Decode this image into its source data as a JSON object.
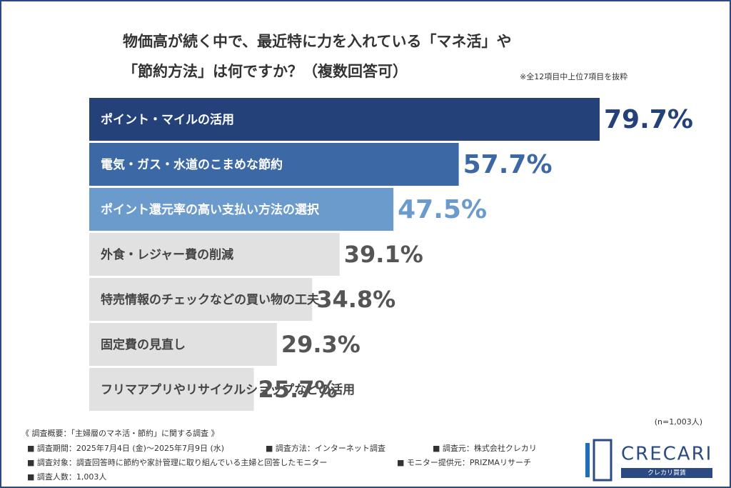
{
  "chart_data": {
    "type": "bar",
    "orientation": "horizontal",
    "title": [
      "物価高が続く中で、最近特に力を入れている「マネ活」や",
      "「節約方法」は何ですか？（複数回答可）"
    ],
    "note": "※全12項目中上位7項目を抜粋",
    "categories": [
      "ポイント・マイルの活用",
      "電気・ガス・水道のこまめな節約",
      "ポイント還元率の高い支払い方法の選択",
      "外食・レジャー費の削減",
      "特売情報のチェックなどの買い物の工夫",
      "固定費の見直し",
      "フリマアプリやリサイクルショップなどの活用"
    ],
    "values": [
      79.7,
      57.7,
      47.5,
      39.1,
      34.8,
      29.3,
      25.7
    ],
    "value_labels": [
      "79.7%",
      "57.7%",
      "47.5%",
      "39.1%",
      "34.8%",
      "29.3%",
      "25.7%"
    ],
    "colors": [
      "#24417a",
      "#3c69a6",
      "#6b9acd",
      "#e1e1e1",
      "#e1e1e1",
      "#e1e1e1",
      "#e1e1e1"
    ],
    "category_label_colors": [
      "#ffffff",
      "#ffffff",
      "#ffffff",
      "#444444",
      "#444444",
      "#444444",
      "#444444"
    ],
    "value_label_colors": [
      "#24417a",
      "#3c69a6",
      "#6b9acd",
      "#555555",
      "#555555",
      "#555555",
      "#555555"
    ],
    "sample_size": "(n=1,003人)"
  },
  "footer": {
    "heading": "《 調査概要：「主婦層のマネ活・節約」に関する調査 》",
    "items": [
      "■ 調査期間：2025年7月4日 (金)〜2025年7月9日 (水)",
      "■ 調査方法：インターネット調査",
      "■ 調査元：株式会社クレカリ",
      "■ 調査対象：調査回答時に節約や家計管理に取り組んでいる主婦と回答したモニター",
      "■ モニター提供元：PRIZMAリサーチ",
      "■ 調査人数：1,003人"
    ]
  },
  "logo": {
    "name": "CRECARI",
    "sub": "クレカリ買賃"
  }
}
